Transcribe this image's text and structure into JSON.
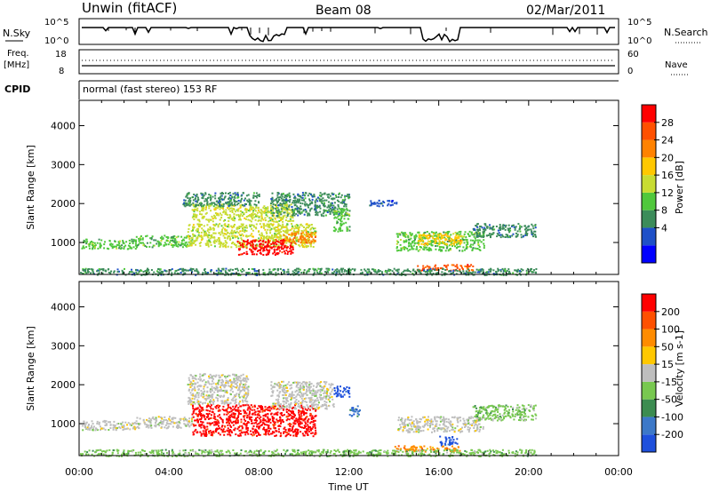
{
  "header": {
    "station": "Unwin (fitACF)",
    "beam": "Beam 08",
    "date": "02/Mar/2011"
  },
  "top_panels": {
    "nsky_label": "N.Sky",
    "nsearch_label": "N.Search",
    "count_ticks": [
      "10^5",
      "10^0"
    ],
    "freq_label": "Freq.",
    "freq_unit": "[MHz]",
    "freq_ticks": [
      "18",
      "8"
    ],
    "nave_label": "Nave",
    "nave_ticks": [
      "60",
      "0"
    ],
    "cpid_label": "CPID",
    "cpid_text": "normal (fast stereo) 153 RF"
  },
  "chart_data": [
    {
      "type": "heatmap",
      "name": "power",
      "ylabel": "Slant Range [km]",
      "xlabel": "",
      "ylim": [
        180,
        4650
      ],
      "xlim": [
        0,
        24
      ],
      "y_ticks": [
        "1000",
        "2000",
        "3000",
        "4000"
      ],
      "y_tick_values": [
        1000,
        2000,
        3000,
        4000
      ],
      "colorbar_label": "Power [dB]",
      "colorbar_ticks": [
        "28",
        "24",
        "20",
        "16",
        "12",
        "8",
        "4"
      ],
      "colorbar_colors": [
        "#0000ff",
        "#1e50c8",
        "#3c8c5a",
        "#50c83c",
        "#c8dc32",
        "#ffc800",
        "#ff8200",
        "#ff5000",
        "#ff0000"
      ],
      "regions": [
        {
          "t0": 0.1,
          "t1": 2.5,
          "r0": 850,
          "r1": 1100,
          "level": 3
        },
        {
          "t0": 2.5,
          "t1": 5.0,
          "r0": 900,
          "r1": 1200,
          "level": 3
        },
        {
          "t0": 4.8,
          "t1": 10.5,
          "r0": 900,
          "r1": 1500,
          "level": 4
        },
        {
          "t0": 5.0,
          "t1": 9.5,
          "r0": 1550,
          "r1": 2000,
          "level": 4
        },
        {
          "t0": 4.6,
          "t1": 8.0,
          "r0": 1950,
          "r1": 2300,
          "level": 2
        },
        {
          "t0": 7.0,
          "t1": 9.5,
          "r0": 700,
          "r1": 1100,
          "level": 8
        },
        {
          "t0": 9.0,
          "t1": 10.5,
          "r0": 1000,
          "r1": 1300,
          "level": 6
        },
        {
          "t0": 8.5,
          "t1": 12.0,
          "r0": 1700,
          "r1": 2300,
          "level": 2
        },
        {
          "t0": 11.3,
          "t1": 12.0,
          "r0": 1300,
          "r1": 1900,
          "level": 3
        },
        {
          "t0": 12.9,
          "t1": 14.2,
          "r0": 1950,
          "r1": 2100,
          "level": 1
        },
        {
          "t0": 14.1,
          "t1": 18.0,
          "r0": 800,
          "r1": 1300,
          "level": 3
        },
        {
          "t0": 15.0,
          "t1": 17.0,
          "r0": 950,
          "r1": 1250,
          "level": 5
        },
        {
          "t0": 15.0,
          "t1": 17.5,
          "r0": 300,
          "r1": 450,
          "level": 7
        },
        {
          "t0": 17.5,
          "t1": 20.3,
          "r0": 1150,
          "r1": 1500,
          "level": 2
        },
        {
          "t0": 0.0,
          "t1": 20.3,
          "r0": 180,
          "r1": 350,
          "level": 2
        }
      ]
    },
    {
      "type": "heatmap",
      "name": "velocity",
      "ylabel": "Slant Range [km]",
      "xlabel": "Time UT",
      "ylim": [
        180,
        4650
      ],
      "xlim": [
        0,
        24
      ],
      "y_ticks": [
        "1000",
        "2000",
        "3000",
        "4000"
      ],
      "y_tick_values": [
        1000,
        2000,
        3000,
        4000
      ],
      "x_ticks": [
        "00:00",
        "04:00",
        "08:00",
        "12:00",
        "16:00",
        "20:00",
        "00:00"
      ],
      "x_tick_values": [
        0,
        4,
        8,
        12,
        16,
        20,
        24
      ],
      "colorbar_label": "Velocity [m s-1]",
      "colorbar_ticks": [
        "200",
        "100",
        "50",
        "15",
        "-15",
        "-50",
        "-100",
        "-200"
      ],
      "colorbar_colors": [
        "#1e50dc",
        "#3c78c8",
        "#3c8c50",
        "#78c850",
        "#bebebe",
        "#ffc800",
        "#ff8c00",
        "#ff5000",
        "#ff0000"
      ],
      "regions": [
        {
          "t0": 0.1,
          "t1": 2.5,
          "r0": 850,
          "r1": 1100,
          "level": 4
        },
        {
          "t0": 2.5,
          "t1": 5.0,
          "r0": 900,
          "r1": 1200,
          "level": 4
        },
        {
          "t0": 4.8,
          "t1": 7.5,
          "r0": 1500,
          "r1": 2300,
          "level": 4
        },
        {
          "t0": 5.0,
          "t1": 10.5,
          "r0": 700,
          "r1": 1500,
          "level": 8
        },
        {
          "t0": 8.5,
          "t1": 11.3,
          "r0": 1400,
          "r1": 2100,
          "level": 4
        },
        {
          "t0": 11.3,
          "t1": 12.0,
          "r0": 1700,
          "r1": 2000,
          "level": 0
        },
        {
          "t0": 12.0,
          "t1": 12.5,
          "r0": 1200,
          "r1": 1500,
          "level": 1
        },
        {
          "t0": 14.1,
          "t1": 18.0,
          "r0": 800,
          "r1": 1200,
          "level": 4
        },
        {
          "t0": 16.0,
          "t1": 16.8,
          "r0": 450,
          "r1": 700,
          "level": 0
        },
        {
          "t0": 14.0,
          "t1": 17.0,
          "r0": 300,
          "r1": 450,
          "level": 6
        },
        {
          "t0": 17.5,
          "t1": 20.3,
          "r0": 1100,
          "r1": 1500,
          "level": 3
        },
        {
          "t0": 0.0,
          "t1": 20.3,
          "r0": 180,
          "r1": 350,
          "level": 3
        }
      ]
    }
  ]
}
